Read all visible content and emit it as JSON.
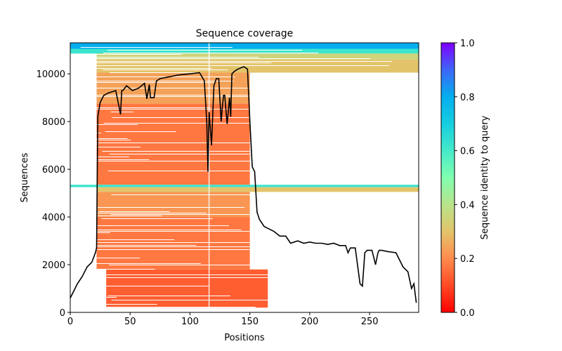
{
  "chart_data": {
    "type": "heatmap",
    "title": "Sequence coverage",
    "xlabel": "Positions",
    "ylabel": "Sequences",
    "xlim": [
      0,
      291
    ],
    "ylim": [
      0,
      11300
    ],
    "xticks": [
      0,
      50,
      100,
      150,
      200,
      250
    ],
    "xtick_labels": [
      "0",
      "50",
      "100",
      "150",
      "200",
      "250"
    ],
    "yticks": [
      0,
      2000,
      4000,
      6000,
      8000,
      10000
    ],
    "ytick_labels": [
      "0",
      "2000",
      "4000",
      "6000",
      "8000",
      "10000"
    ],
    "grid": false,
    "colorbar": {
      "label": "Sequence identity to query",
      "colormap": "rainbow_r",
      "range": [
        0,
        1
      ],
      "ticks": [
        0.0,
        0.2,
        0.4,
        0.6,
        0.8,
        1.0
      ],
      "tick_labels": [
        "0.0",
        "0.2",
        "0.4",
        "0.6",
        "0.8",
        "1.0"
      ],
      "position": "right"
    },
    "coverage_blocks": [
      {
        "x": [
          0,
          291
        ],
        "y": [
          11050,
          11300
        ],
        "identity": 0.8
      },
      {
        "x": [
          0,
          291
        ],
        "y": [
          10850,
          11050
        ],
        "identity": 0.62
      },
      {
        "x": [
          22,
          291
        ],
        "y": [
          10600,
          10850
        ],
        "identity": 0.35
      },
      {
        "x": [
          22,
          291
        ],
        "y": [
          10050,
          10600
        ],
        "identity": 0.3
      },
      {
        "x": [
          22,
          150
        ],
        "y": [
          8750,
          10050
        ],
        "identity": 0.24
      },
      {
        "x": [
          22,
          150
        ],
        "y": [
          5350,
          8750
        ],
        "identity": 0.17
      },
      {
        "x": [
          0,
          291
        ],
        "y": [
          5250,
          5350
        ],
        "identity": 0.62
      },
      {
        "x": [
          22,
          291
        ],
        "y": [
          5050,
          5250
        ],
        "identity": 0.3
      },
      {
        "x": [
          22,
          150
        ],
        "y": [
          4000,
          5050
        ],
        "identity": 0.22
      },
      {
        "x": [
          22,
          150
        ],
        "y": [
          1800,
          4000
        ],
        "identity": 0.17
      },
      {
        "x": [
          30,
          165
        ],
        "y": [
          200,
          1800
        ],
        "identity": 0.13
      }
    ],
    "coverage_line": {
      "name": "coverage",
      "color": "#000000",
      "x": [
        0,
        3,
        6,
        10,
        14,
        18,
        21,
        22,
        23,
        25,
        28,
        32,
        38,
        42,
        43,
        44,
        47,
        52,
        57,
        62,
        64,
        66,
        67,
        70,
        72,
        75,
        80,
        90,
        100,
        108,
        112,
        114,
        115,
        116,
        118,
        120,
        122,
        124,
        126,
        127,
        128,
        129,
        130,
        131,
        133,
        134,
        135,
        137,
        140,
        145,
        148,
        150,
        152,
        154,
        156,
        158,
        162,
        170,
        175,
        180,
        184,
        190,
        195,
        200,
        205,
        210,
        215,
        220,
        225,
        230,
        232,
        234,
        238,
        242,
        244,
        246,
        248,
        252,
        255,
        257,
        258,
        260,
        265,
        272,
        278,
        282,
        285,
        287,
        289
      ],
      "y": [
        600,
        900,
        1200,
        1500,
        1900,
        2100,
        2500,
        2700,
        8200,
        8800,
        9100,
        9200,
        9300,
        8300,
        9300,
        9300,
        9500,
        9300,
        9400,
        9600,
        8950,
        9550,
        9000,
        9000,
        9700,
        9800,
        9850,
        9950,
        10000,
        10050,
        9700,
        8000,
        5900,
        8400,
        7000,
        9500,
        9800,
        9800,
        8000,
        8600,
        9100,
        9100,
        8500,
        7900,
        9000,
        8200,
        10000,
        10100,
        10200,
        10300,
        10200,
        8000,
        6100,
        5900,
        4200,
        3900,
        3600,
        3400,
        3200,
        3200,
        2900,
        3000,
        2900,
        2950,
        2900,
        2900,
        2850,
        2900,
        2800,
        2800,
        2500,
        2700,
        2700,
        1200,
        1100,
        2500,
        2600,
        2600,
        2000,
        2500,
        2600,
        2600,
        2550,
        2500,
        1900,
        1700,
        1000,
        1200,
        400
      ]
    }
  }
}
